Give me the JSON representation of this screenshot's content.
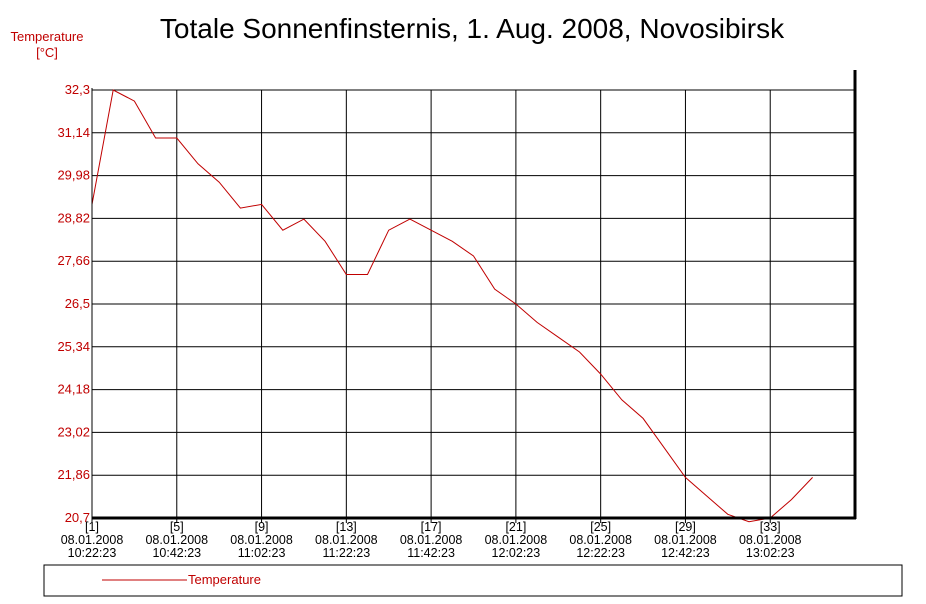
{
  "chart_data": {
    "type": "line",
    "title": "Totale Sonnenfinsternis, 1. Aug. 2008, Novosibirsk",
    "ylabel": [
      "Temperature",
      "[°C]"
    ],
    "xlabel": "",
    "ylim": [
      20.7,
      32.3
    ],
    "yticks": [
      "32,3",
      "31,14",
      "29,98",
      "28,82",
      "27,66",
      "26,5",
      "25,34",
      "24,18",
      "23,02",
      "21,86",
      "20,7"
    ],
    "x_count": 35,
    "xticks": [
      {
        "index": 1,
        "label": [
          "[1]",
          "08.01.2008",
          "10:22:23"
        ]
      },
      {
        "index": 5,
        "label": [
          "[5]",
          "08.01.2008",
          "10:42:23"
        ]
      },
      {
        "index": 9,
        "label": [
          "[9]",
          "08.01.2008",
          "11:02:23"
        ]
      },
      {
        "index": 13,
        "label": [
          "[13]",
          "08.01.2008",
          "11:22:23"
        ]
      },
      {
        "index": 17,
        "label": [
          "[17]",
          "08.01.2008",
          "11:42:23"
        ]
      },
      {
        "index": 21,
        "label": [
          "[21]",
          "08.01.2008",
          "12:02:23"
        ]
      },
      {
        "index": 25,
        "label": [
          "[25]",
          "08.01.2008",
          "12:22:23"
        ]
      },
      {
        "index": 29,
        "label": [
          "[29]",
          "08.01.2008",
          "12:42:23"
        ]
      },
      {
        "index": 33,
        "label": [
          "[33]",
          "08.01.2008",
          "13:02:23"
        ]
      }
    ],
    "grid": true,
    "legend_position": "bottom",
    "series": [
      {
        "name": "Temperature",
        "color": "#c00000",
        "x": [
          1,
          2,
          3,
          4,
          5,
          6,
          7,
          8,
          9,
          10,
          11,
          12,
          13,
          14,
          15,
          16,
          17,
          18,
          19,
          20,
          21,
          22,
          23,
          24,
          25,
          26,
          27,
          28,
          29,
          30,
          31,
          32,
          33,
          34,
          35
        ],
        "values": [
          29.2,
          32.3,
          32.0,
          31.0,
          31.0,
          30.3,
          29.8,
          29.1,
          29.2,
          28.5,
          28.8,
          28.2,
          27.3,
          27.3,
          28.5,
          28.8,
          28.5,
          28.2,
          27.8,
          26.9,
          26.5,
          26.0,
          25.6,
          25.2,
          24.6,
          23.9,
          23.4,
          22.6,
          21.8,
          21.3,
          20.8,
          20.6,
          20.7,
          21.2,
          21.8
        ]
      }
    ]
  }
}
